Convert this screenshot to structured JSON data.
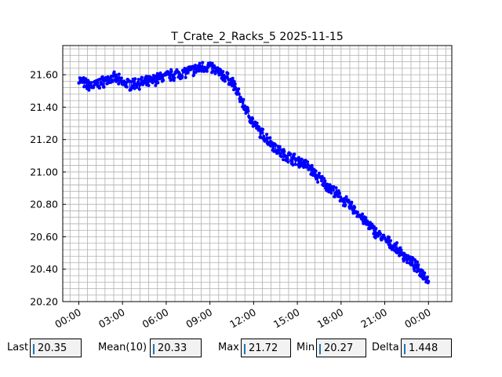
{
  "chart_data": {
    "type": "line",
    "title": "T_Crate_2_Racks_5 2025-11-15",
    "xlabel": "",
    "ylabel": "",
    "x_tick_labels": [
      "00:00",
      "03:00",
      "06:00",
      "09:00",
      "12:00",
      "15:00",
      "18:00",
      "21:00",
      "00:00"
    ],
    "x_range_hours": [
      -1.1,
      25.6
    ],
    "y_ticks": [
      "20.20",
      "20.40",
      "20.60",
      "20.80",
      "21.00",
      "21.20",
      "21.40",
      "21.60"
    ],
    "ylim": [
      20.2,
      21.78
    ],
    "grid": true,
    "marker": "dot",
    "color": "#0000ff",
    "series": [
      {
        "x_hours": [
          0.0,
          0.5,
          1.0,
          1.5,
          2.0,
          2.5,
          3.0,
          3.5,
          4.0,
          4.5,
          5.0,
          5.5,
          6.0,
          6.5,
          7.0,
          7.5,
          8.0,
          8.5,
          9.0,
          9.5,
          10.0,
          10.5,
          11.0,
          11.5,
          12.0,
          12.5,
          13.0,
          13.5,
          14.0,
          14.5,
          15.0,
          15.5,
          16.0,
          16.5,
          17.0,
          17.5,
          18.0,
          18.5,
          19.0,
          19.5,
          20.0,
          20.5,
          21.0,
          21.5,
          22.0,
          22.5,
          23.0,
          23.5,
          24.0
        ],
        "values": [
          21.57,
          21.54,
          21.53,
          21.55,
          21.57,
          21.58,
          21.55,
          21.54,
          21.55,
          21.55,
          21.56,
          21.58,
          21.59,
          21.6,
          21.61,
          21.62,
          21.63,
          21.65,
          21.65,
          21.62,
          21.59,
          21.56,
          21.47,
          21.38,
          21.3,
          21.24,
          21.2,
          21.15,
          21.11,
          21.09,
          21.07,
          21.05,
          21.01,
          20.96,
          20.92,
          20.88,
          20.84,
          20.8,
          20.76,
          20.71,
          20.66,
          20.62,
          20.58,
          20.55,
          20.51,
          20.47,
          20.43,
          20.38,
          20.34
        ]
      }
    ]
  },
  "stats": {
    "last_label": "Last",
    "last_value": "20.35",
    "mean_label": "Mean(10)",
    "mean_value": "20.33",
    "max_label": "Max",
    "max_value": "21.72",
    "min_label": "Min",
    "min_value": "20.27",
    "delta_label": "Delta",
    "delta_value": "1.448"
  }
}
